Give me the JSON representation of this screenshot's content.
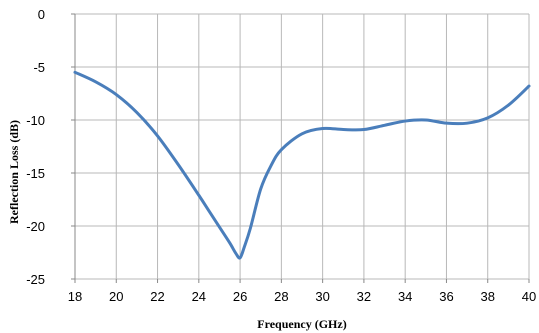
{
  "chart_data": {
    "type": "line",
    "title": "",
    "xlabel": "Frequency (GHz)",
    "ylabel": "Reflection Loss (dB)",
    "xlim": [
      18,
      40
    ],
    "ylim": [
      -25,
      0
    ],
    "xticks": [
      "18",
      "20",
      "22",
      "24",
      "26",
      "28",
      "30",
      "32",
      "34",
      "36",
      "38",
      "40"
    ],
    "yticks": [
      "0",
      "-5",
      "-10",
      "-15",
      "-20",
      "-25"
    ],
    "grid": true,
    "legend": "none",
    "series": [
      {
        "color": "#4a7ebb",
        "x": [
          18,
          19,
          20,
          21,
          22,
          23,
          24,
          24.5,
          25,
          25.5,
          25.8,
          26,
          26.2,
          26.5,
          27,
          27.5,
          28,
          29,
          30,
          31,
          32,
          33,
          34,
          35,
          36,
          37,
          38,
          39,
          40
        ],
        "y": [
          -5.5,
          -6.4,
          -7.6,
          -9.3,
          -11.5,
          -14.2,
          -17.1,
          -18.6,
          -20.1,
          -21.6,
          -22.6,
          -23.0,
          -22.0,
          -20.2,
          -16.5,
          -14.3,
          -12.8,
          -11.3,
          -10.8,
          -10.9,
          -10.9,
          -10.5,
          -10.1,
          -10.0,
          -10.3,
          -10.3,
          -9.8,
          -8.6,
          -6.8
        ]
      }
    ]
  }
}
